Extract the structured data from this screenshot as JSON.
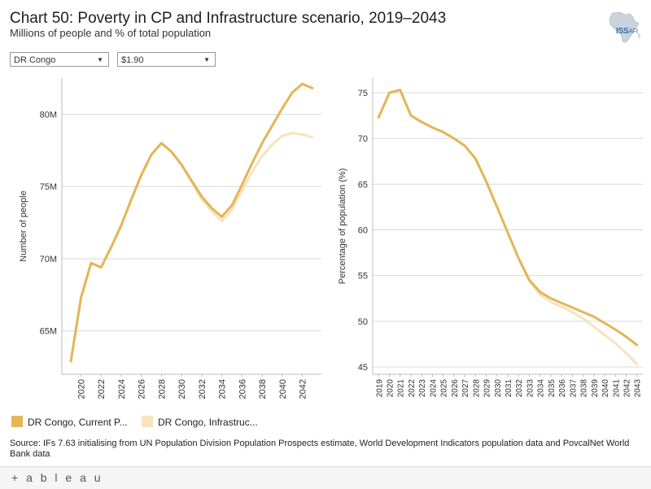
{
  "header": {
    "title": "Chart 50: Poverty in CP and Infrastructure scenario, 2019–2043",
    "subtitle": "Millions of people and % of total population",
    "logo_main": "ISS",
    "logo_sub": "AFI"
  },
  "filters": {
    "country": "DR Congo",
    "poverty_line": "$1.90"
  },
  "colors": {
    "current_path": "#e3b656",
    "infrastructure": "#f7e3bd",
    "gridline": "#d9d9d9",
    "logo_blue": "#2e6ea6"
  },
  "legend": {
    "current": "DR Congo, Current P...",
    "infrastructure": "DR Congo, Infrastruc..."
  },
  "source": "Source: IFs 7.63 initialising from UN Population Division Population Prospects estimate, World Development Indicators population data and PovcalNet World Bank data",
  "footer": {
    "brand": "+ a b l e a u"
  },
  "chart_data": [
    {
      "type": "line",
      "id": "people",
      "title": "",
      "xlabel": "",
      "ylabel": "Number of people",
      "x": [
        2019,
        2020,
        2021,
        2022,
        2023,
        2024,
        2025,
        2026,
        2027,
        2028,
        2029,
        2030,
        2031,
        2032,
        2033,
        2034,
        2035,
        2036,
        2037,
        2038,
        2039,
        2040,
        2041,
        2042,
        2043
      ],
      "xticks": [
        2020,
        2022,
        2024,
        2026,
        2028,
        2030,
        2032,
        2034,
        2036,
        2038,
        2040,
        2042
      ],
      "xtick_labels": [
        "2020",
        "2022",
        "2024",
        "2026",
        "2028",
        "2030",
        "2032",
        "2034",
        "2036",
        "2038",
        "2040",
        "2042"
      ],
      "xlim": [
        2018.1,
        2043.9
      ],
      "ylim": [
        62.0,
        82.5
      ],
      "yticks": [
        65,
        70,
        75,
        80
      ],
      "ytick_labels": [
        "65M",
        "70M",
        "75M",
        "80M"
      ],
      "grid": true,
      "series": [
        {
          "name": "DR Congo, Current Path",
          "color_key": "current_path",
          "values": [
            62.9,
            67.3,
            69.7,
            69.4,
            70.8,
            72.3,
            74.1,
            75.8,
            77.2,
            78.0,
            77.4,
            76.5,
            75.4,
            74.3,
            73.5,
            72.9,
            73.7,
            75.1,
            76.6,
            78.0,
            79.2,
            80.4,
            81.5,
            82.1,
            81.8
          ]
        },
        {
          "name": "DR Congo, Infrastructure",
          "color_key": "infrastructure",
          "values": [
            62.9,
            67.3,
            69.7,
            69.4,
            70.8,
            72.3,
            74.1,
            75.8,
            77.2,
            78.0,
            77.4,
            76.5,
            75.3,
            74.1,
            73.3,
            72.6,
            73.4,
            74.7,
            76.0,
            77.1,
            77.9,
            78.5,
            78.7,
            78.6,
            78.4
          ]
        }
      ]
    },
    {
      "type": "line",
      "id": "percent",
      "title": "",
      "xlabel": "",
      "ylabel": "Percentage of population (%)",
      "x": [
        2019,
        2020,
        2021,
        2022,
        2023,
        2024,
        2025,
        2026,
        2027,
        2028,
        2029,
        2030,
        2031,
        2032,
        2033,
        2034,
        2035,
        2036,
        2037,
        2038,
        2039,
        2040,
        2041,
        2042,
        2043
      ],
      "xticks": [
        2019,
        2020,
        2021,
        2022,
        2023,
        2024,
        2025,
        2026,
        2027,
        2028,
        2029,
        2030,
        2031,
        2032,
        2033,
        2034,
        2035,
        2036,
        2037,
        2038,
        2039,
        2040,
        2041,
        2042,
        2043
      ],
      "xtick_labels": [
        "2019",
        "2020",
        "2021",
        "2022",
        "2023",
        "2024",
        "2025",
        "2026",
        "2027",
        "2028",
        "2029",
        "2030",
        "2031",
        "2032",
        "2033",
        "2034",
        "2035",
        "2036",
        "2037",
        "2038",
        "2039",
        "2040",
        "2041",
        "2042",
        "2043"
      ],
      "xlim": [
        2018.45,
        2043.55
      ],
      "ylim": [
        44.2,
        76.6
      ],
      "yticks": [
        45,
        50,
        55,
        60,
        65,
        70,
        75
      ],
      "ytick_labels": [
        "45",
        "50",
        "55",
        "60",
        "65",
        "70",
        "75"
      ],
      "grid": true,
      "series": [
        {
          "name": "DR Congo, Current Path",
          "color_key": "current_path",
          "values": [
            72.3,
            75.0,
            75.3,
            72.5,
            71.8,
            71.2,
            70.7,
            70.0,
            69.2,
            67.8,
            65.3,
            62.5,
            59.7,
            56.9,
            54.5,
            53.2,
            52.5,
            52.0,
            51.5,
            51.0,
            50.5,
            49.8,
            49.1,
            48.3,
            47.4
          ]
        },
        {
          "name": "DR Congo, Infrastructure",
          "color_key": "infrastructure",
          "values": [
            72.3,
            75.0,
            75.3,
            72.5,
            71.8,
            71.2,
            70.7,
            70.0,
            69.2,
            67.8,
            65.3,
            62.5,
            59.7,
            56.9,
            54.4,
            52.9,
            52.1,
            51.6,
            51.0,
            50.3,
            49.4,
            48.5,
            47.6,
            46.5,
            45.3
          ]
        }
      ]
    }
  ]
}
